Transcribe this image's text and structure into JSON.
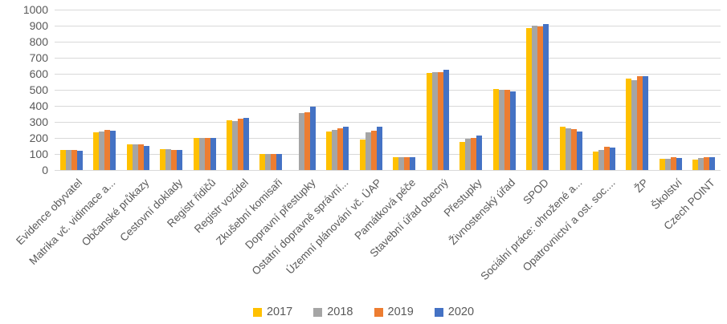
{
  "chart_data": {
    "type": "bar",
    "title": "",
    "xlabel": "",
    "ylabel": "",
    "ylim": [
      0,
      1000
    ],
    "ytick_step": 100,
    "grid": true,
    "legend_position": "bottom",
    "gridline_color": "#d9d9d9",
    "axis_text_color": "#595959",
    "categories": [
      "Evidence obyvatel",
      "Matrika vč. vidimace a...",
      "Občanské průkazy",
      "Cestovní doklady",
      "Registr řidičů",
      "Registr vozidel",
      "Zkušební komisaři",
      "Dopravní přestupky",
      "Ostatní dopravně správní...",
      "Územní plánování vč. ÚAP",
      "Památková péče",
      "Stavební úřad obecný",
      "Přestupky",
      "Živnostenský úřad",
      "SPOD",
      "Sociální práce: ohrožené a...",
      "Opatrovnictví a ost. soc....",
      "ŽP",
      "Školství",
      "Czech POINT"
    ],
    "series": [
      {
        "name": "2017",
        "color": "#FFC000",
        "values": [
          125,
          235,
          160,
          130,
          200,
          310,
          100,
          null,
          240,
          190,
          80,
          605,
          175,
          505,
          885,
          270,
          115,
          570,
          70,
          65
        ]
      },
      {
        "name": "2018",
        "color": "#A5A5A5",
        "values": [
          125,
          240,
          160,
          130,
          200,
          305,
          100,
          355,
          250,
          235,
          82,
          610,
          195,
          500,
          900,
          262,
          125,
          560,
          70,
          75
        ]
      },
      {
        "name": "2019",
        "color": "#ED7D31",
        "values": [
          125,
          250,
          160,
          125,
          200,
          320,
          100,
          360,
          260,
          245,
          80,
          610,
          200,
          500,
          895,
          255,
          145,
          585,
          80,
          80
        ]
      },
      {
        "name": "2020",
        "color": "#4472C4",
        "values": [
          120,
          245,
          150,
          125,
          200,
          325,
          100,
          395,
          270,
          270,
          82,
          625,
          215,
          490,
          910,
          240,
          140,
          585,
          75,
          80
        ]
      }
    ]
  }
}
